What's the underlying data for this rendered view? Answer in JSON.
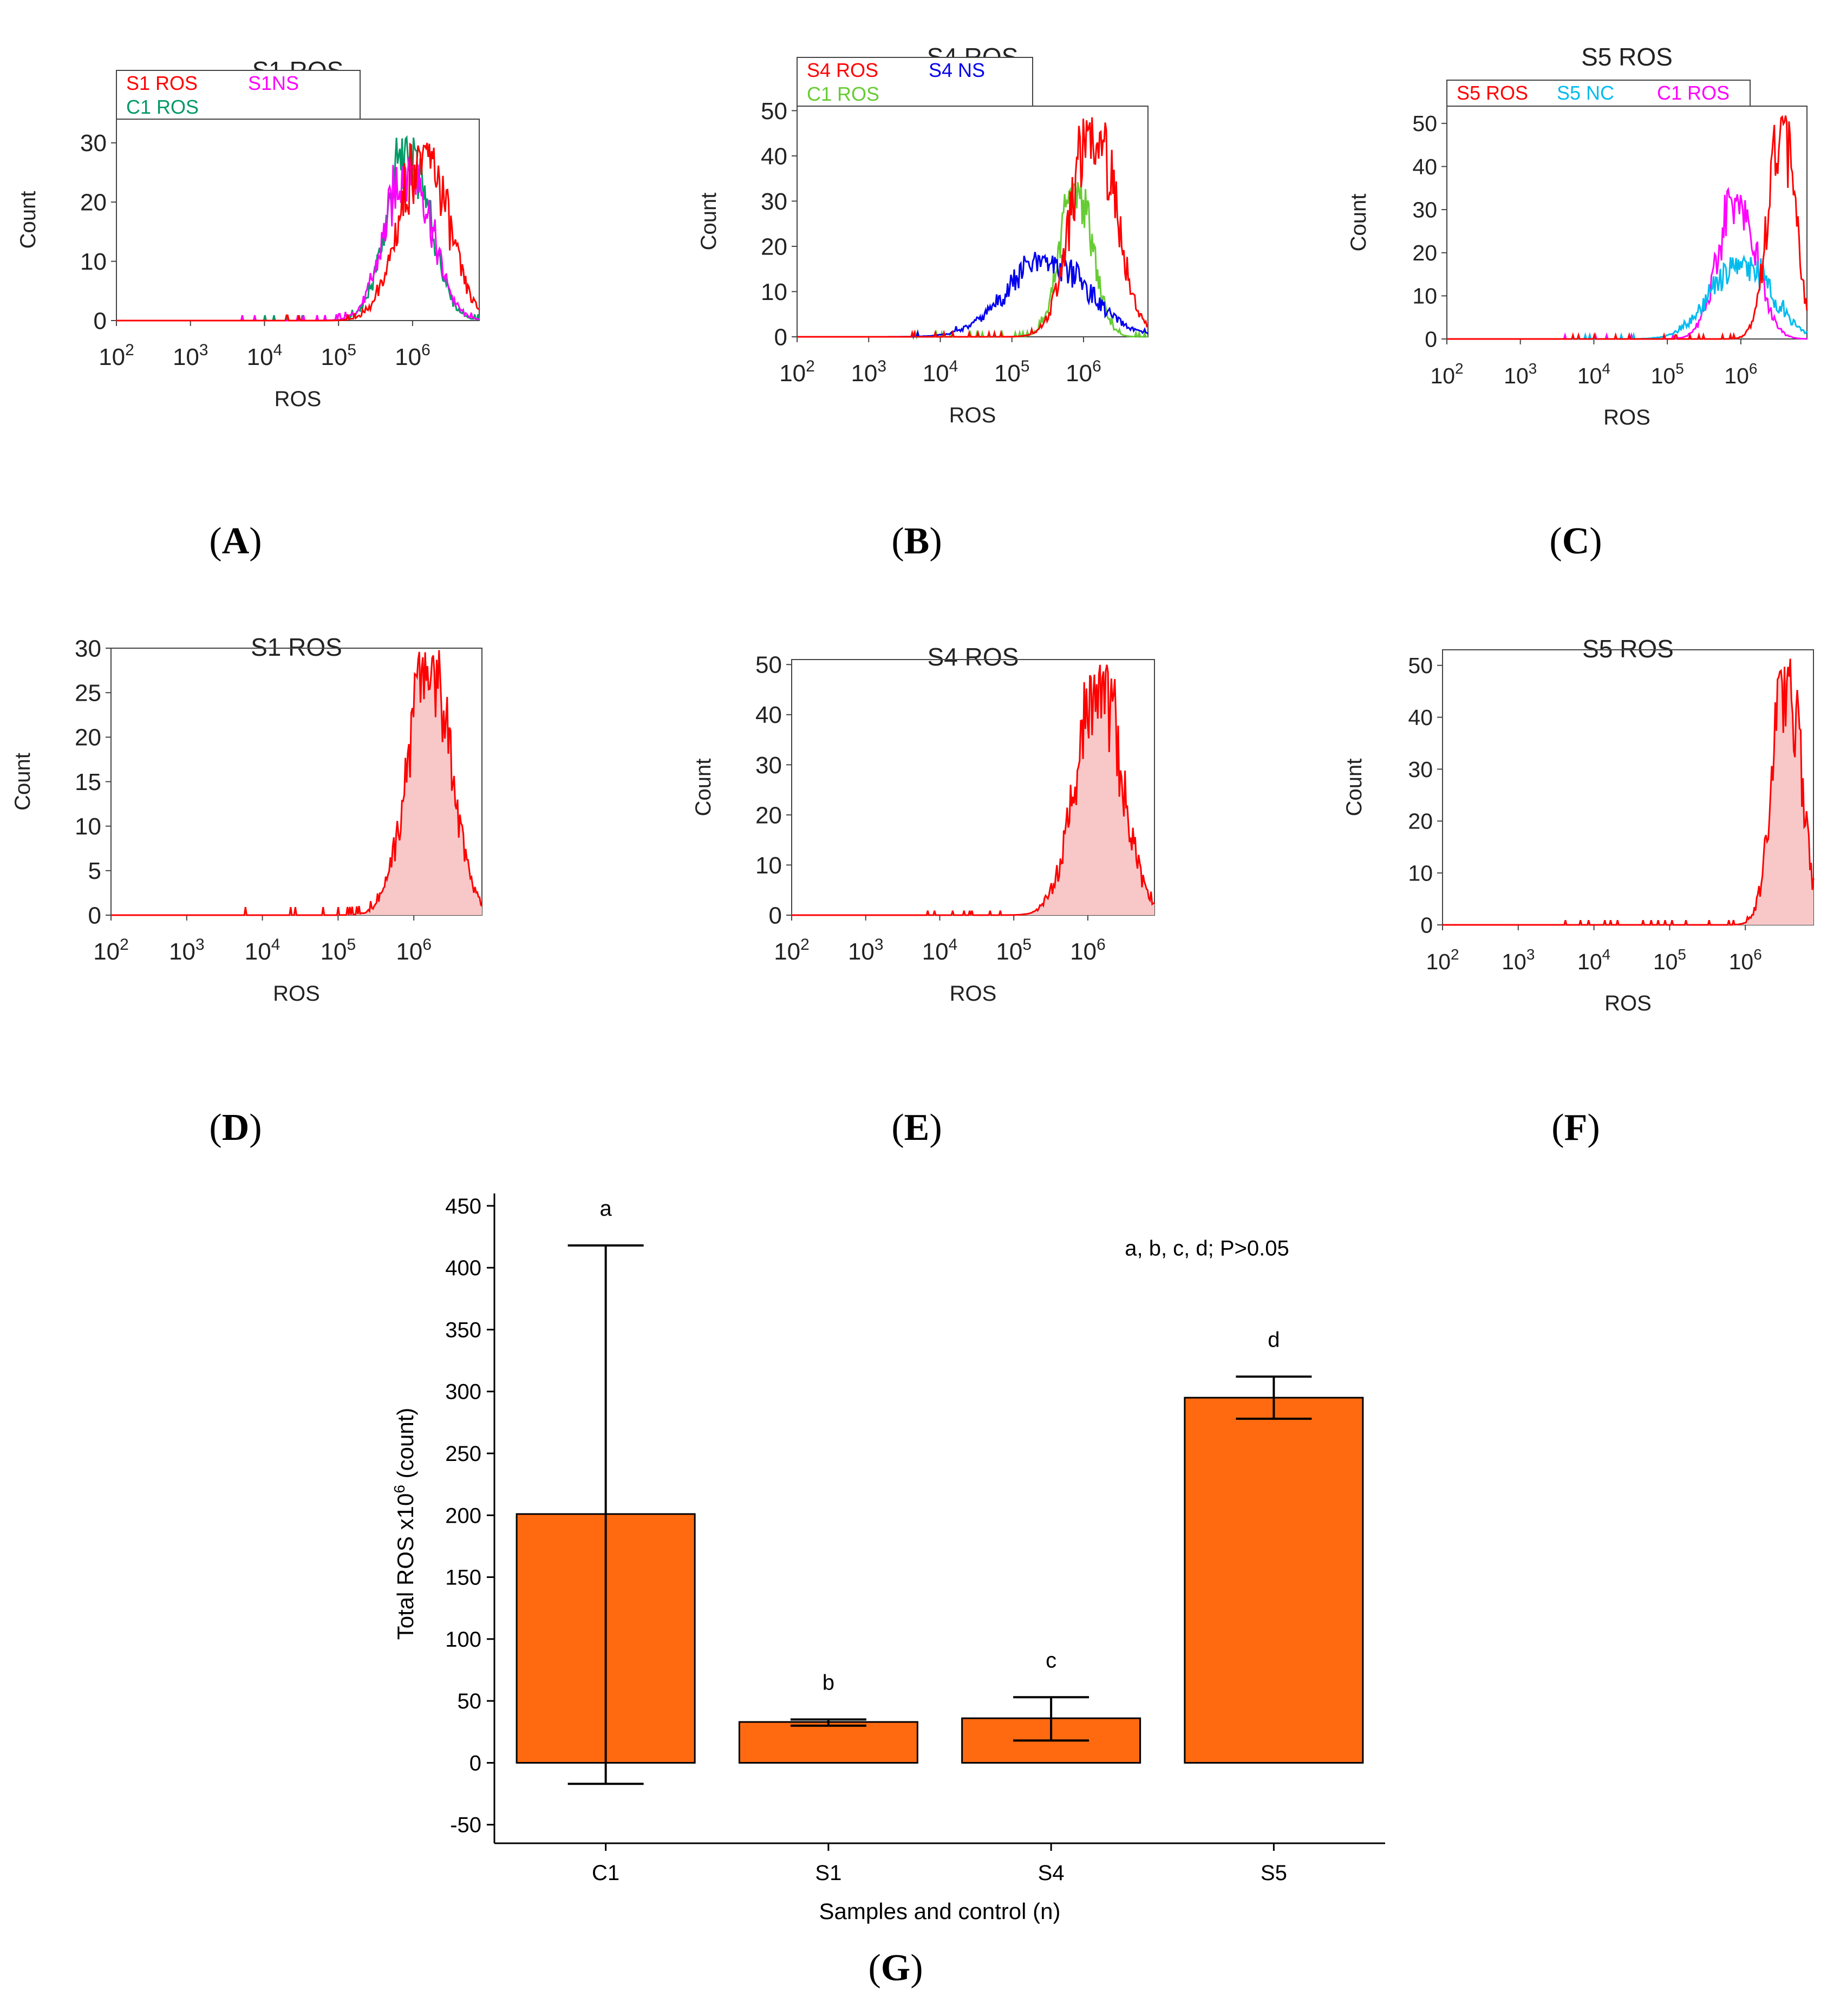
{
  "panel_labels": [
    "A",
    "B",
    "C",
    "D",
    "E",
    "F",
    "G"
  ],
  "chart_data": [
    {
      "panel": "A",
      "type": "line",
      "title": "S1 ROS",
      "xlabel": "ROS",
      "ylabel": "Count",
      "x_scale": "log10",
      "xlim_exp": [
        2,
        6.9
      ],
      "ylim": [
        0,
        34
      ],
      "yticks": [
        0,
        10,
        20,
        30
      ],
      "xtick_labels": [
        "10",
        "10",
        "10",
        "10",
        "10"
      ],
      "xtick_exps": [
        "2",
        "3",
        "4",
        "5",
        "6"
      ],
      "legend_rows": [
        [
          "S1 ROS",
          "S1NS"
        ],
        [
          "C1 ROS"
        ]
      ],
      "series": [
        {
          "name": "S1 ROS",
          "color": "#ff0000",
          "peak_log_x": 6.15,
          "peak": 30,
          "width": 0.32
        },
        {
          "name": "S1NS",
          "color": "#ff00ff",
          "peak_log_x": 5.95,
          "peak": 28,
          "width": 0.3
        },
        {
          "name": "C1 ROS",
          "color": "#009966",
          "peak_log_x": 5.95,
          "peak": 31,
          "width": 0.28
        }
      ]
    },
    {
      "panel": "B",
      "type": "line",
      "title": "S4  ROS",
      "xlabel": "ROS",
      "ylabel": "Count",
      "x_scale": "log10",
      "xlim_exp": [
        2,
        6.9
      ],
      "ylim": [
        0,
        51
      ],
      "yticks": [
        0,
        10,
        20,
        30,
        40,
        50
      ],
      "xtick_labels": [
        "10",
        "10",
        "10",
        "10",
        "10"
      ],
      "xtick_exps": [
        "2",
        "3",
        "4",
        "5",
        "6"
      ],
      "legend_rows": [
        [
          "S4  ROS",
          "S4 NS"
        ],
        [
          "C1 ROS"
        ]
      ],
      "series": [
        {
          "name": "S4  ROS",
          "color": "#ff0000",
          "peak_log_x": 6.15,
          "peak": 50,
          "width": 0.3
        },
        {
          "name": "S4 NS",
          "color": "#0000ee",
          "peak_log_x": 5.5,
          "peak": 18,
          "width": 0.55
        },
        {
          "name": "C1 ROS",
          "color": "#66cc33",
          "peak_log_x": 5.9,
          "peak": 35,
          "width": 0.22
        }
      ]
    },
    {
      "panel": "C",
      "type": "line",
      "title": "S5 ROS",
      "xlabel": "ROS",
      "ylabel": "Count",
      "x_scale": "log10",
      "xlim_exp": [
        2,
        6.9
      ],
      "ylim": [
        0,
        54
      ],
      "yticks": [
        0,
        10,
        20,
        30,
        40,
        50
      ],
      "xtick_labels": [
        "10",
        "10",
        "10",
        "10",
        "10"
      ],
      "xtick_exps": [
        "2",
        "3",
        "4",
        "5",
        "6"
      ],
      "legend_rows": [
        [
          "S5 ROS",
          "S5 NC",
          "C1 ROS"
        ]
      ],
      "series": [
        {
          "name": "S5 ROS",
          "color": "#ff0000",
          "peak_log_x": 6.55,
          "peak": 52,
          "width": 0.18
        },
        {
          "name": "S5 NC",
          "color": "#00bbee",
          "peak_log_x": 6.0,
          "peak": 19,
          "width": 0.4
        },
        {
          "name": "C1 ROS",
          "color": "#ff00ff",
          "peak_log_x": 5.95,
          "peak": 35,
          "width": 0.25
        }
      ]
    },
    {
      "panel": "D",
      "type": "area",
      "title": "S1 ROS",
      "xlabel": "ROS",
      "ylabel": "Count",
      "x_scale": "log10",
      "xlim_exp": [
        2,
        6.9
      ],
      "ylim": [
        0,
        30
      ],
      "yticks": [
        0,
        5,
        10,
        15,
        20,
        25,
        30
      ],
      "xtick_labels": [
        "10",
        "10",
        "10",
        "10",
        "10"
      ],
      "xtick_exps": [
        "2",
        "3",
        "4",
        "5",
        "6"
      ],
      "series": [
        {
          "name": "S1 ROS",
          "color": "#ff0000",
          "fill": "#f8c8c8",
          "peak_log_x": 6.2,
          "peak": 30,
          "width": 0.28
        }
      ]
    },
    {
      "panel": "E",
      "type": "area",
      "title": "S4  ROS",
      "xlabel": "ROS",
      "ylabel": "Count",
      "x_scale": "log10",
      "xlim_exp": [
        2,
        6.9
      ],
      "ylim": [
        0,
        51
      ],
      "yticks": [
        0,
        10,
        20,
        30,
        40,
        50
      ],
      "xtick_labels": [
        "10",
        "10",
        "10",
        "10",
        "10"
      ],
      "xtick_exps": [
        "2",
        "3",
        "4",
        "5",
        "6"
      ],
      "series": [
        {
          "name": "S4  ROS",
          "color": "#ff0000",
          "fill": "#f8c8c8",
          "peak_log_x": 6.15,
          "peak": 50,
          "width": 0.3
        }
      ]
    },
    {
      "panel": "F",
      "type": "area",
      "title": "S5 ROS",
      "xlabel": "ROS",
      "ylabel": "Count",
      "x_scale": "log10",
      "xlim_exp": [
        2,
        6.9
      ],
      "ylim": [
        0,
        53
      ],
      "yticks": [
        0,
        10,
        20,
        30,
        40,
        50
      ],
      "xtick_labels": [
        "10",
        "10",
        "10",
        "10",
        "10"
      ],
      "xtick_exps": [
        "2",
        "3",
        "4",
        "5",
        "6"
      ],
      "series": [
        {
          "name": "S5 ROS",
          "color": "#ff0000",
          "fill": "#f8c8c8",
          "peak_log_x": 6.55,
          "peak": 52,
          "width": 0.18
        }
      ]
    },
    {
      "panel": "G",
      "type": "bar",
      "categories": [
        "C1",
        "S1",
        "S4",
        "S5"
      ],
      "values": [
        201,
        33,
        36,
        295
      ],
      "error_low": [
        -17,
        30,
        18,
        278
      ],
      "error_high": [
        418,
        35,
        53,
        312
      ],
      "letters": [
        "a",
        "b",
        "c",
        "d"
      ],
      "annotation": "a, b, c, d; P>0.05",
      "xlabel": "Samples and control (n)",
      "ylabel": "Total ROS x10",
      "ylabel_sup": "6",
      "ylabel_suffix": " (count)",
      "ylim": [
        -65,
        460
      ],
      "yticks": [
        -50,
        0,
        50,
        100,
        150,
        200,
        250,
        300,
        350,
        400,
        450
      ],
      "bar_color": "#ff6a10"
    }
  ]
}
